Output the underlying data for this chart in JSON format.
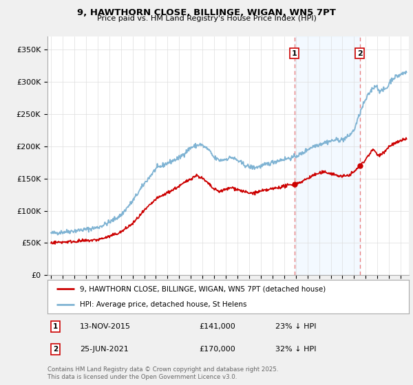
{
  "title": "9, HAWTHORN CLOSE, BILLINGE, WIGAN, WN5 7PT",
  "subtitle": "Price paid vs. HM Land Registry's House Price Index (HPI)",
  "ylim": [
    0,
    370000
  ],
  "yticks": [
    0,
    50000,
    100000,
    150000,
    200000,
    250000,
    300000,
    350000
  ],
  "ytick_labels": [
    "£0",
    "£50K",
    "£100K",
    "£150K",
    "£200K",
    "£250K",
    "£300K",
    "£350K"
  ],
  "xlim_start": 1994.7,
  "xlim_end": 2025.7,
  "sale1_date_num": 2015.87,
  "sale1_price": 141000,
  "sale1_label": "13-NOV-2015",
  "sale1_price_str": "£141,000",
  "sale1_pct": "23% ↓ HPI",
  "sale2_date_num": 2021.48,
  "sale2_price": 170000,
  "sale2_label": "25-JUN-2021",
  "sale2_price_str": "£170,000",
  "sale2_pct": "32% ↓ HPI",
  "line_color_property": "#cc0000",
  "line_color_hpi": "#7fb3d3",
  "marker_color": "#cc0000",
  "sale_line_color": "#e88080",
  "shade_color": "#ddeeff",
  "legend_label_property": "9, HAWTHORN CLOSE, BILLINGE, WIGAN, WN5 7PT (detached house)",
  "legend_label_hpi": "HPI: Average price, detached house, St Helens",
  "footer": "Contains HM Land Registry data © Crown copyright and database right 2025.\nThis data is licensed under the Open Government Licence v3.0.",
  "bg_color": "#f0f0f0",
  "plot_bg_color": "#ffffff"
}
